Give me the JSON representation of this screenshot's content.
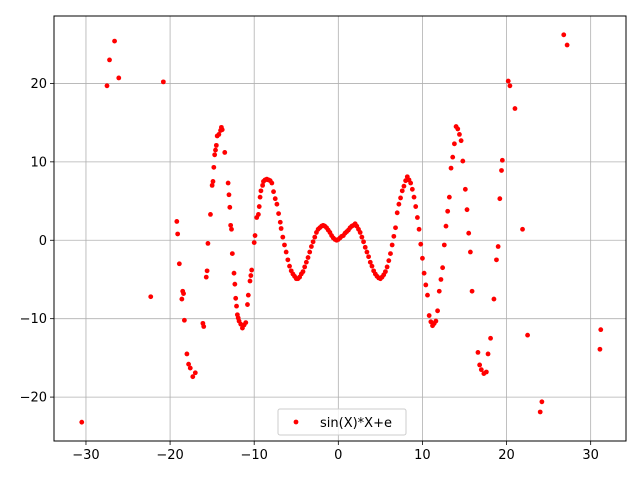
{
  "chart_data": {
    "type": "scatter",
    "title": "",
    "xlabel": "",
    "ylabel": "",
    "xlim": [
      -33.8,
      34.2
    ],
    "ylim": [
      -25.6,
      28.6
    ],
    "xticks": [
      -30,
      -20,
      -10,
      0,
      10,
      20,
      30
    ],
    "yticks": [
      -20,
      -10,
      0,
      10,
      20
    ],
    "grid": true,
    "legend_position": "lower center",
    "series": [
      {
        "name": "sin(X)*X+e",
        "color": "#ff0000",
        "marker": "circle",
        "points": [
          [
            -30.5,
            -23.2
          ],
          [
            -27.5,
            19.7
          ],
          [
            -27.2,
            23.0
          ],
          [
            -26.6,
            25.4
          ],
          [
            -26.1,
            20.7
          ],
          [
            -22.3,
            -7.2
          ],
          [
            -20.8,
            20.2
          ],
          [
            -19.2,
            2.4
          ],
          [
            -19.1,
            0.8
          ],
          [
            -18.9,
            -3.0
          ],
          [
            -18.6,
            -7.5
          ],
          [
            -18.5,
            -6.5
          ],
          [
            -18.4,
            -6.8
          ],
          [
            -18.3,
            -10.2
          ],
          [
            -18.0,
            -14.5
          ],
          [
            -17.8,
            -15.8
          ],
          [
            -17.6,
            -16.3
          ],
          [
            -17.3,
            -17.4
          ],
          [
            -17.0,
            -16.9
          ],
          [
            -16.1,
            -10.6
          ],
          [
            -16.0,
            -11.0
          ],
          [
            -15.7,
            -4.7
          ],
          [
            -15.6,
            -3.9
          ],
          [
            -15.5,
            -0.4
          ],
          [
            -15.2,
            3.3
          ],
          [
            -15.0,
            7.0
          ],
          [
            -14.9,
            7.5
          ],
          [
            -14.8,
            9.3
          ],
          [
            -14.7,
            10.9
          ],
          [
            -14.6,
            11.5
          ],
          [
            -14.5,
            12.1
          ],
          [
            -14.4,
            13.3
          ],
          [
            -14.2,
            13.5
          ],
          [
            -14.0,
            14.0
          ],
          [
            -13.9,
            14.4
          ],
          [
            -13.8,
            14.1
          ],
          [
            -13.5,
            11.2
          ],
          [
            -13.1,
            7.3
          ],
          [
            -13.0,
            5.8
          ],
          [
            -12.9,
            4.2
          ],
          [
            -12.8,
            1.9
          ],
          [
            -12.7,
            1.4
          ],
          [
            -12.6,
            -1.7
          ],
          [
            -12.4,
            -4.2
          ],
          [
            -12.3,
            -5.6
          ],
          [
            -12.2,
            -7.4
          ],
          [
            -12.1,
            -8.4
          ],
          [
            -12.0,
            -9.5
          ],
          [
            -11.9,
            -9.9
          ],
          [
            -11.8,
            -10.3
          ],
          [
            -11.6,
            -10.7
          ],
          [
            -11.4,
            -11.2
          ],
          [
            -11.2,
            -10.8
          ],
          [
            -11.0,
            -10.5
          ],
          [
            -10.8,
            -8.2
          ],
          [
            -10.7,
            -7.0
          ],
          [
            -10.5,
            -5.2
          ],
          [
            -10.4,
            -4.5
          ],
          [
            -10.3,
            -3.8
          ],
          [
            -10.0,
            -0.3
          ],
          [
            -9.9,
            0.6
          ],
          [
            -9.7,
            2.9
          ],
          [
            -9.5,
            3.3
          ],
          [
            -9.4,
            4.3
          ],
          [
            -9.3,
            5.5
          ],
          [
            -9.2,
            6.3
          ],
          [
            -9.0,
            7.0
          ],
          [
            -8.9,
            7.5
          ],
          [
            -8.7,
            7.7
          ],
          [
            -8.5,
            7.8
          ],
          [
            -8.3,
            7.7
          ],
          [
            -8.1,
            7.6
          ],
          [
            -7.9,
            7.3
          ],
          [
            -7.7,
            6.2
          ],
          [
            -7.5,
            5.3
          ],
          [
            -7.3,
            4.6
          ],
          [
            -7.1,
            3.4
          ],
          [
            -6.9,
            2.3
          ],
          [
            -6.8,
            1.5
          ],
          [
            -6.6,
            0.4
          ],
          [
            -6.4,
            -0.6
          ],
          [
            -6.2,
            -1.5
          ],
          [
            -6.0,
            -2.5
          ],
          [
            -5.8,
            -3.3
          ],
          [
            -5.6,
            -3.9
          ],
          [
            -5.4,
            -4.3
          ],
          [
            -5.2,
            -4.6
          ],
          [
            -5.0,
            -4.9
          ],
          [
            -4.8,
            -4.9
          ],
          [
            -4.6,
            -4.7
          ],
          [
            -4.4,
            -4.3
          ],
          [
            -4.2,
            -4.0
          ],
          [
            -4.0,
            -3.4
          ],
          [
            -3.8,
            -2.8
          ],
          [
            -3.6,
            -2.2
          ],
          [
            -3.4,
            -1.5
          ],
          [
            -3.2,
            -0.8
          ],
          [
            -3.0,
            -0.2
          ],
          [
            -2.8,
            0.4
          ],
          [
            -2.6,
            1.0
          ],
          [
            -2.4,
            1.4
          ],
          [
            -2.2,
            1.6
          ],
          [
            -2.0,
            1.8
          ],
          [
            -1.8,
            1.9
          ],
          [
            -1.6,
            1.8
          ],
          [
            -1.4,
            1.6
          ],
          [
            -1.2,
            1.3
          ],
          [
            -1.0,
            1.0
          ],
          [
            -0.8,
            0.6
          ],
          [
            -0.6,
            0.3
          ],
          [
            -0.4,
            0.1
          ],
          [
            -0.2,
            0.0
          ],
          [
            0.0,
            0.1
          ],
          [
            0.2,
            0.3
          ],
          [
            0.4,
            0.5
          ],
          [
            0.6,
            0.6
          ],
          [
            0.8,
            0.9
          ],
          [
            1.0,
            1.1
          ],
          [
            1.2,
            1.3
          ],
          [
            1.4,
            1.6
          ],
          [
            1.6,
            1.8
          ],
          [
            1.8,
            1.9
          ],
          [
            2.0,
            2.1
          ],
          [
            2.2,
            1.8
          ],
          [
            2.4,
            1.4
          ],
          [
            2.6,
            1.0
          ],
          [
            2.8,
            0.4
          ],
          [
            3.0,
            -0.2
          ],
          [
            3.2,
            -0.9
          ],
          [
            3.4,
            -1.5
          ],
          [
            3.6,
            -2.1
          ],
          [
            3.8,
            -2.8
          ],
          [
            4.0,
            -3.3
          ],
          [
            4.2,
            -3.9
          ],
          [
            4.4,
            -4.3
          ],
          [
            4.6,
            -4.6
          ],
          [
            4.8,
            -4.8
          ],
          [
            5.0,
            -4.9
          ],
          [
            5.2,
            -4.7
          ],
          [
            5.4,
            -4.4
          ],
          [
            5.6,
            -4.0
          ],
          [
            5.8,
            -3.4
          ],
          [
            6.0,
            -2.6
          ],
          [
            6.2,
            -1.7
          ],
          [
            6.4,
            -0.6
          ],
          [
            6.6,
            0.5
          ],
          [
            6.8,
            1.6
          ],
          [
            7.0,
            3.5
          ],
          [
            7.2,
            4.6
          ],
          [
            7.4,
            5.4
          ],
          [
            7.6,
            6.3
          ],
          [
            7.8,
            6.9
          ],
          [
            8.0,
            7.6
          ],
          [
            8.2,
            8.1
          ],
          [
            8.4,
            7.7
          ],
          [
            8.6,
            7.3
          ],
          [
            8.8,
            6.5
          ],
          [
            9.0,
            5.5
          ],
          [
            9.2,
            4.3
          ],
          [
            9.4,
            2.9
          ],
          [
            9.6,
            1.4
          ],
          [
            9.8,
            -0.5
          ],
          [
            10.0,
            -2.3
          ],
          [
            10.2,
            -4.2
          ],
          [
            10.4,
            -5.7
          ],
          [
            10.6,
            -7.0
          ],
          [
            10.8,
            -9.6
          ],
          [
            11.0,
            -10.4
          ],
          [
            11.2,
            -10.9
          ],
          [
            11.4,
            -10.6
          ],
          [
            11.6,
            -10.3
          ],
          [
            11.8,
            -9.0
          ],
          [
            12.0,
            -6.5
          ],
          [
            12.2,
            -5.0
          ],
          [
            12.4,
            -3.5
          ],
          [
            12.6,
            -0.6
          ],
          [
            12.8,
            1.8
          ],
          [
            13.0,
            3.7
          ],
          [
            13.2,
            5.5
          ],
          [
            13.4,
            9.2
          ],
          [
            13.6,
            10.6
          ],
          [
            13.8,
            12.3
          ],
          [
            14.0,
            14.5
          ],
          [
            14.2,
            14.2
          ],
          [
            14.4,
            13.5
          ],
          [
            14.6,
            12.7
          ],
          [
            14.8,
            10.1
          ],
          [
            15.1,
            6.5
          ],
          [
            15.3,
            3.9
          ],
          [
            15.5,
            0.9
          ],
          [
            15.7,
            -1.5
          ],
          [
            15.9,
            -6.5
          ],
          [
            16.6,
            -14.3
          ],
          [
            16.8,
            -15.9
          ],
          [
            17.0,
            -16.5
          ],
          [
            17.3,
            -17.0
          ],
          [
            17.6,
            -16.8
          ],
          [
            17.8,
            -14.5
          ],
          [
            18.1,
            -12.5
          ],
          [
            18.5,
            -7.5
          ],
          [
            18.8,
            -2.5
          ],
          [
            19.0,
            -0.8
          ],
          [
            19.2,
            5.3
          ],
          [
            19.4,
            8.9
          ],
          [
            19.5,
            10.2
          ],
          [
            20.2,
            20.3
          ],
          [
            20.4,
            19.7
          ],
          [
            21.0,
            16.8
          ],
          [
            21.9,
            1.4
          ],
          [
            22.5,
            -12.1
          ],
          [
            24.0,
            -21.9
          ],
          [
            24.2,
            -20.6
          ],
          [
            26.8,
            26.2
          ],
          [
            27.2,
            24.9
          ],
          [
            31.1,
            -13.9
          ],
          [
            31.2,
            -11.4
          ]
        ]
      }
    ]
  }
}
